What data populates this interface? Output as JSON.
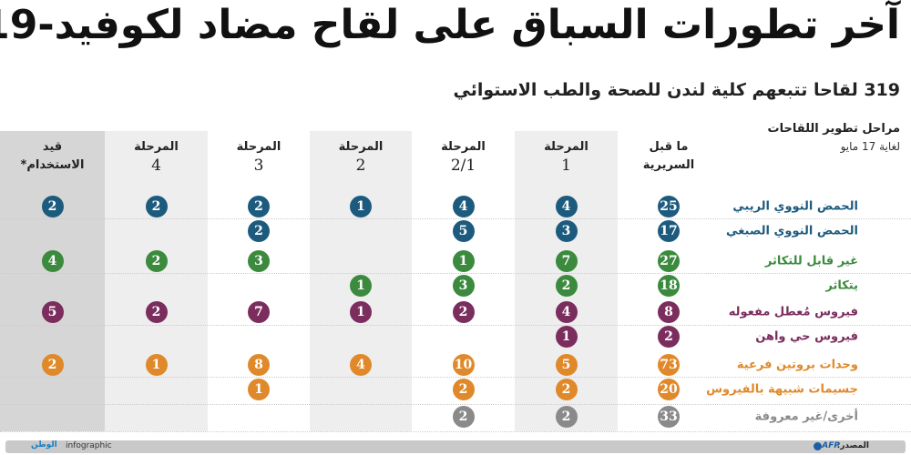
{
  "header": {
    "title": "آخر تطورات السباق على لقاح مضاد لكوفيد-19",
    "subtitle": "319 لقاحا تتبعهم كلية لندن للصحة والطب الاستوائي"
  },
  "legend": {
    "title": "مراحل تطوير اللقاحات",
    "date": "لغاية 17 مايو"
  },
  "chart_data": {
    "type": "table",
    "title": "آخر تطورات السباق على لقاح مضاد لكوفيد-19",
    "columns": [
      {
        "label": "ما قبل السريرية",
        "num": ""
      },
      {
        "label": "المرحلة",
        "num": "1"
      },
      {
        "label": "المرحلة",
        "num": "2/1"
      },
      {
        "label": "المرحلة",
        "num": "2"
      },
      {
        "label": "المرحلة",
        "num": "3"
      },
      {
        "label": "المرحلة",
        "num": "4"
      },
      {
        "label": "قيد الاستخدام*",
        "num": ""
      }
    ],
    "rows": [
      {
        "label": "الحمض النووي الريبي",
        "color": "#1d5b7e",
        "values": [
          25,
          4,
          4,
          1,
          2,
          2,
          2
        ]
      },
      {
        "label": "الحمض النووي الصبغي",
        "color": "#1d5b7e",
        "values": [
          17,
          3,
          5,
          null,
          2,
          null,
          null
        ]
      },
      {
        "label": "غير قابل للتكاثر",
        "color": "#3b8a3e",
        "values": [
          27,
          7,
          1,
          null,
          3,
          2,
          4
        ]
      },
      {
        "label": "يتكاثر",
        "color": "#3b8a3e",
        "values": [
          18,
          2,
          3,
          1,
          null,
          null,
          null
        ]
      },
      {
        "label": "فيروس مُعطل مفعوله",
        "color": "#7b2d5e",
        "values": [
          8,
          4,
          2,
          1,
          7,
          2,
          5
        ]
      },
      {
        "label": "فيروس حي واهن",
        "color": "#7b2d5e",
        "values": [
          2,
          1,
          null,
          null,
          null,
          null,
          null
        ]
      },
      {
        "label": "وحدات بروتين فرعية",
        "color": "#e0892a",
        "values": [
          73,
          5,
          10,
          4,
          8,
          1,
          2
        ]
      },
      {
        "label": "جسيمات شبيهة بالفيروس",
        "color": "#e0892a",
        "values": [
          20,
          2,
          2,
          null,
          1,
          null,
          null
        ]
      },
      {
        "label": "أخرى/غير معروفة",
        "color": "#8a8a8a",
        "values": [
          33,
          2,
          2,
          null,
          null,
          null,
          null
        ]
      }
    ]
  },
  "footer": {
    "source_label": "المصدر:",
    "source": "AFP",
    "brand": "الوطن",
    "infographic": "infographic"
  }
}
